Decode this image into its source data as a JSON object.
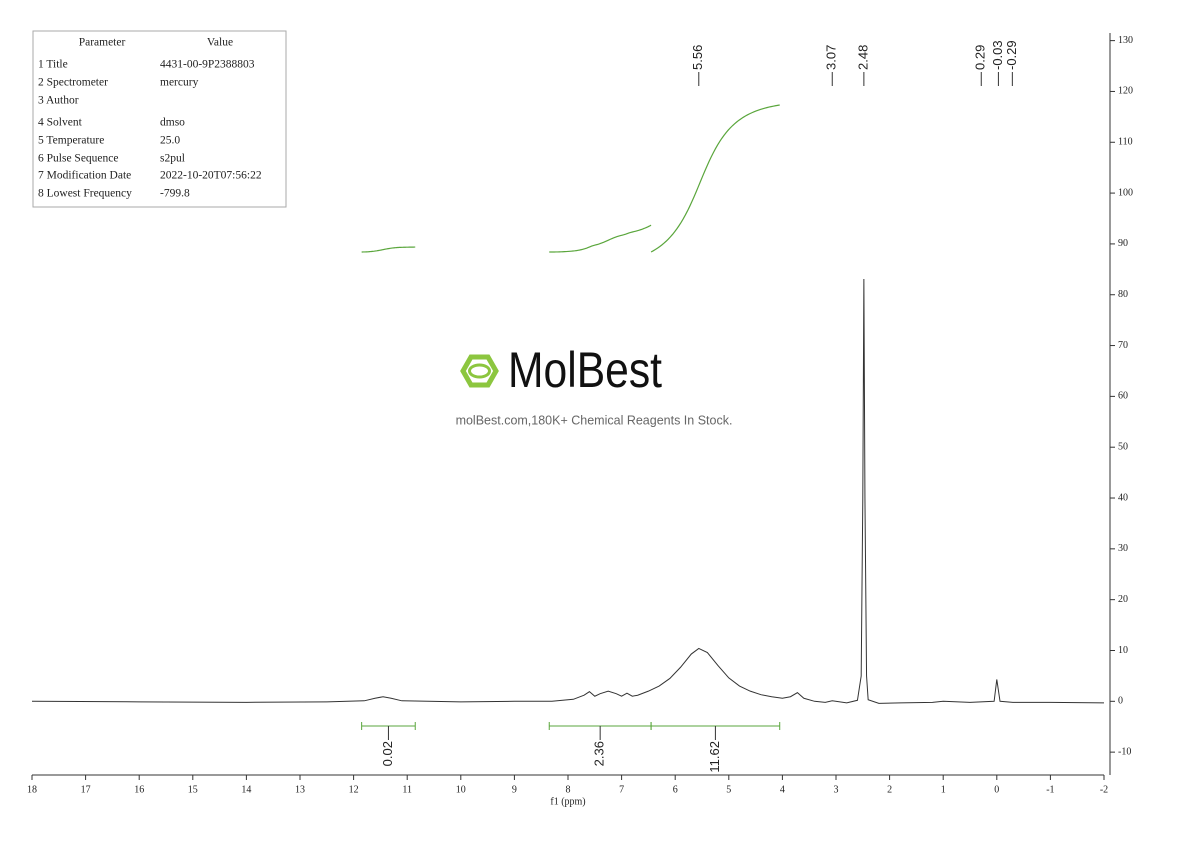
{
  "chart_data": {
    "type": "line",
    "x_label": "f1 (ppm)",
    "xlim": [
      18,
      -2
    ],
    "xticks": [
      18,
      17,
      16,
      15,
      14,
      13,
      12,
      11,
      10,
      9,
      8,
      7,
      6,
      5,
      4,
      3,
      2,
      1,
      0,
      -1,
      -2
    ],
    "ylim": [
      -14.5,
      131.5
    ],
    "yticks": [
      -10,
      0,
      10,
      20,
      30,
      40,
      50,
      60,
      70,
      80,
      90,
      100,
      110,
      120,
      130
    ],
    "series": [
      {
        "color": "#333333",
        "x": [
          18,
          16,
          14,
          12.5,
          11.8,
          11.6,
          11.45,
          11.3,
          11.1,
          10,
          9,
          8.3,
          7.9,
          7.7,
          7.6,
          7.5,
          7.4,
          7.25,
          7.1,
          7.0,
          6.9,
          6.8,
          6.7,
          6.5,
          6.3,
          6.1,
          5.9,
          5.7,
          5.56,
          5.4,
          5.2,
          5.0,
          4.8,
          4.6,
          4.4,
          4.2,
          4.0,
          3.85,
          3.72,
          3.6,
          3.4,
          3.2,
          3.07,
          2.8,
          2.6,
          2.53,
          2.5,
          2.48,
          2.46,
          2.43,
          2.4,
          2.2,
          1.8,
          1.2,
          1.0,
          0.5,
          0.05,
          0.0,
          -0.06,
          -0.3,
          -1,
          -2
        ],
        "values": [
          0,
          -0.1,
          -0.2,
          -0.1,
          0.1,
          0.6,
          0.9,
          0.6,
          0.1,
          -0.1,
          0,
          0,
          0.4,
          1.2,
          1.9,
          1.0,
          1.5,
          2.0,
          1.5,
          1.0,
          1.6,
          1.0,
          1.2,
          2.0,
          3.0,
          4.5,
          6.7,
          9.3,
          10.4,
          9.6,
          7.0,
          4.6,
          3.0,
          2.0,
          1.3,
          0.9,
          0.6,
          0.9,
          1.7,
          0.6,
          0,
          -0.2,
          0.1,
          -0.3,
          0.2,
          5,
          40,
          83.1,
          40,
          5,
          0.3,
          -0.4,
          -0.3,
          -0.2,
          0,
          -0.2,
          0,
          4.3,
          0,
          -0.2,
          -0.2,
          -0.3
        ]
      }
    ],
    "peak_labels": [
      5.56,
      3.07,
      2.48,
      0.29,
      -0.03,
      -0.29
    ],
    "integrals": [
      {
        "from": 11.85,
        "to": 10.85,
        "value": 0.02
      },
      {
        "from": 8.35,
        "to": 6.45,
        "value": 2.36
      },
      {
        "from": 6.45,
        "to": 4.05,
        "value": 11.62
      }
    ],
    "integral_color": "#5aa63c"
  },
  "parameter_table": {
    "header": [
      "Parameter",
      "Value"
    ],
    "rows": [
      [
        "1 Title",
        "4431-00-9P2388803"
      ],
      [
        "2 Spectrometer",
        "mercury"
      ],
      [
        "3 Author"
      ],
      [
        "4 Solvent",
        "dmso"
      ],
      [
        "5 Temperature",
        "25.0"
      ],
      [
        "6 Pulse Sequence",
        "s2pul"
      ],
      [
        "7 Modification Date",
        "2022-10-20T07:56:22"
      ],
      [
        "8 Lowest Frequency",
        "-799.8"
      ]
    ]
  },
  "watermark": {
    "brand": "MolBest",
    "tagline": "molBest.com,180K+ Chemical Reagents In Stock."
  }
}
